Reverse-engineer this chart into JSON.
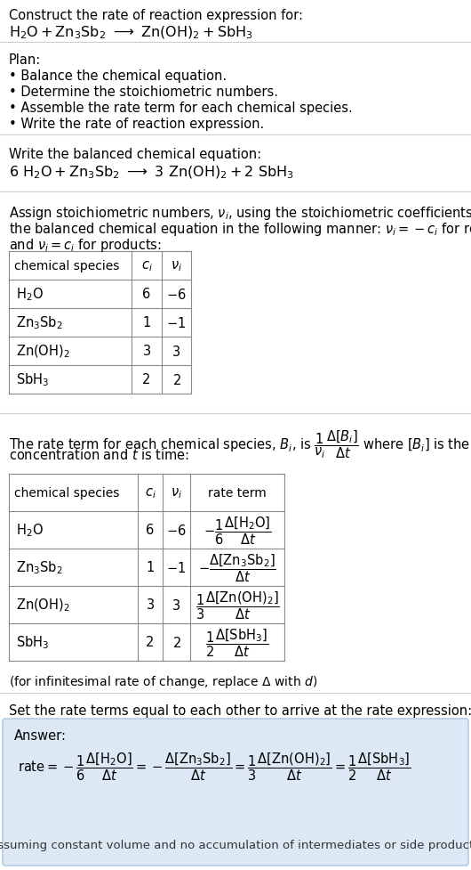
{
  "bg_color": "#ffffff",
  "answer_box_color": "#dce9f5",
  "answer_box_edge": "#aac4e0",
  "title_text": "Construct the rate of reaction expression for:",
  "plan_header": "Plan:",
  "plan_items": [
    "• Balance the chemical equation.",
    "• Determine the stoichiometric numbers.",
    "• Assemble the rate term for each chemical species.",
    "• Write the rate of reaction expression."
  ],
  "balanced_header": "Write the balanced chemical equation:",
  "stoich_intro_lines": [
    "Assign stoichiometric numbers, $\\nu_i$, using the stoichiometric coefficients, $c_i$, from",
    "the balanced chemical equation in the following manner: $\\nu_i = -c_i$ for reactants",
    "and $\\nu_i = c_i$ for products:"
  ],
  "table1_species": [
    "$\\mathrm{H_2O}$",
    "$\\mathrm{Zn_3Sb_2}$",
    "$\\mathrm{Zn(OH)_2}$",
    "$\\mathrm{SbH_3}$"
  ],
  "table1_ci": [
    "6",
    "1",
    "3",
    "2"
  ],
  "table1_vi": [
    "$-6$",
    "$-1$",
    "$3$",
    "$2$"
  ],
  "table2_species": [
    "$\\mathrm{H_2O}$",
    "$\\mathrm{Zn_3Sb_2}$",
    "$\\mathrm{Zn(OH)_2}$",
    "$\\mathrm{SbH_3}$"
  ],
  "table2_ci": [
    "6",
    "1",
    "3",
    "2"
  ],
  "table2_vi": [
    "$-6$",
    "$-1$",
    "$3$",
    "$2$"
  ],
  "rate_terms": [
    "$-\\dfrac{1}{6}\\dfrac{\\Delta[\\mathrm{H_2O}]}{\\Delta t}$",
    "$-\\dfrac{\\Delta[\\mathrm{Zn_3Sb_2}]}{\\Delta t}$",
    "$\\dfrac{1}{3}\\dfrac{\\Delta[\\mathrm{Zn(OH)_2}]}{\\Delta t}$",
    "$\\dfrac{1}{2}\\dfrac{\\Delta[\\mathrm{SbH_3}]}{\\Delta t}$"
  ],
  "set_equal_text": "Set the rate terms equal to each other to arrive at the rate expression:",
  "answer_label": "Answer:",
  "final_note": "(assuming constant volume and no accumulation of intermediates or side products)"
}
